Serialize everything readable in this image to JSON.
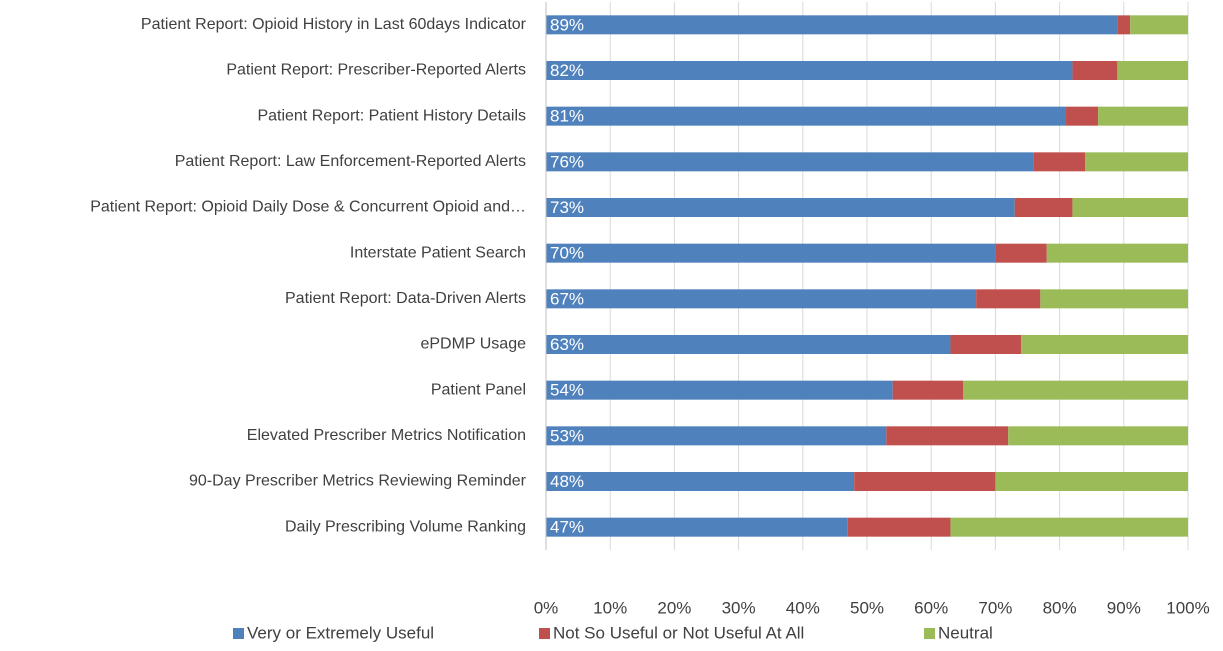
{
  "chart_data": {
    "type": "stacked_bar_horizontal",
    "categories": [
      "Patient Report: Opioid History in Last 60days Indicator",
      "Patient Report: Prescriber-Reported Alerts",
      "Patient Report: Patient History Details",
      "Patient Report: Law Enforcement-Reported Alerts",
      "Patient Report: Opioid Daily Dose & Concurrent Opioid and…",
      "Interstate Patient Search",
      "Patient Report: Data-Driven Alerts",
      "ePDMP Usage",
      "Patient Panel",
      "Elevated Prescriber Metrics Notification",
      "90-Day Prescriber Metrics Reviewing Reminder",
      "Daily Prescribing Volume Ranking"
    ],
    "series": [
      {
        "name": "Very or Extremely Useful",
        "color": "#4f81bd",
        "values": [
          89,
          82,
          81,
          76,
          73,
          70,
          67,
          63,
          54,
          53,
          48,
          47
        ],
        "value_labels": [
          "89%",
          "82%",
          "81%",
          "76%",
          "73%",
          "70%",
          "67%",
          "63%",
          "54%",
          "53%",
          "48%",
          "47%"
        ]
      },
      {
        "name": "Not So Useful or Not Useful At All",
        "color": "#c0504d",
        "values": [
          2,
          7,
          5,
          8,
          9,
          8,
          10,
          11,
          11,
          19,
          22,
          16
        ]
      },
      {
        "name": "Neutral",
        "color": "#9bbb59",
        "values": [
          9,
          11,
          14,
          16,
          18,
          22,
          23,
          26,
          35,
          28,
          30,
          37
        ]
      }
    ],
    "xlim": [
      0,
      100
    ],
    "xticks": [
      {
        "value": 0,
        "label": "0%"
      },
      {
        "value": 10,
        "label": "10%"
      },
      {
        "value": 20,
        "label": "20%"
      },
      {
        "value": 30,
        "label": "30%"
      },
      {
        "value": 40,
        "label": "40%"
      },
      {
        "value": 50,
        "label": "50%"
      },
      {
        "value": 60,
        "label": "60%"
      },
      {
        "value": 70,
        "label": "70%"
      },
      {
        "value": 80,
        "label": "80%"
      },
      {
        "value": 90,
        "label": "90%"
      },
      {
        "value": 100,
        "label": "100%"
      }
    ],
    "grid": true,
    "legend": "bottom"
  }
}
